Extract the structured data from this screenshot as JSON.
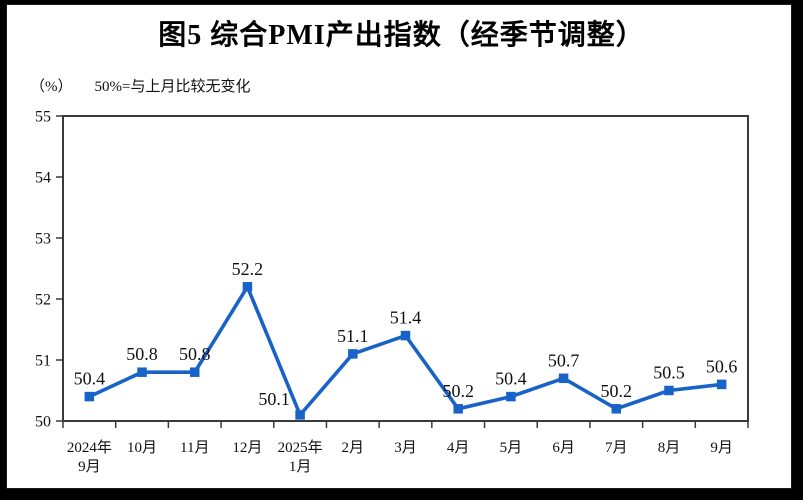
{
  "chart_data": {
    "type": "line",
    "title": "图5 综合PMI产出指数（经季节调整）",
    "unit_label": "（%）",
    "note": "50%=与上月比较无变化",
    "categories": [
      "2024年\n9月",
      "10月",
      "11月",
      "12月",
      "2025年\n1月",
      "2月",
      "3月",
      "4月",
      "5月",
      "6月",
      "7月",
      "8月",
      "9月"
    ],
    "values": [
      50.4,
      50.8,
      50.8,
      52.2,
      50.1,
      51.1,
      51.4,
      50.2,
      50.4,
      50.7,
      50.2,
      50.5,
      50.6
    ],
    "ylim": [
      50,
      55
    ],
    "ytick_step": 1,
    "grid": false,
    "legend": "none",
    "data_labels": true,
    "label_offsets": {
      "4": [
        -26,
        2
      ]
    },
    "line_color": "#1962c8",
    "marker": "square",
    "axis_color": "#3a3a3a",
    "text_color": "#111111"
  }
}
